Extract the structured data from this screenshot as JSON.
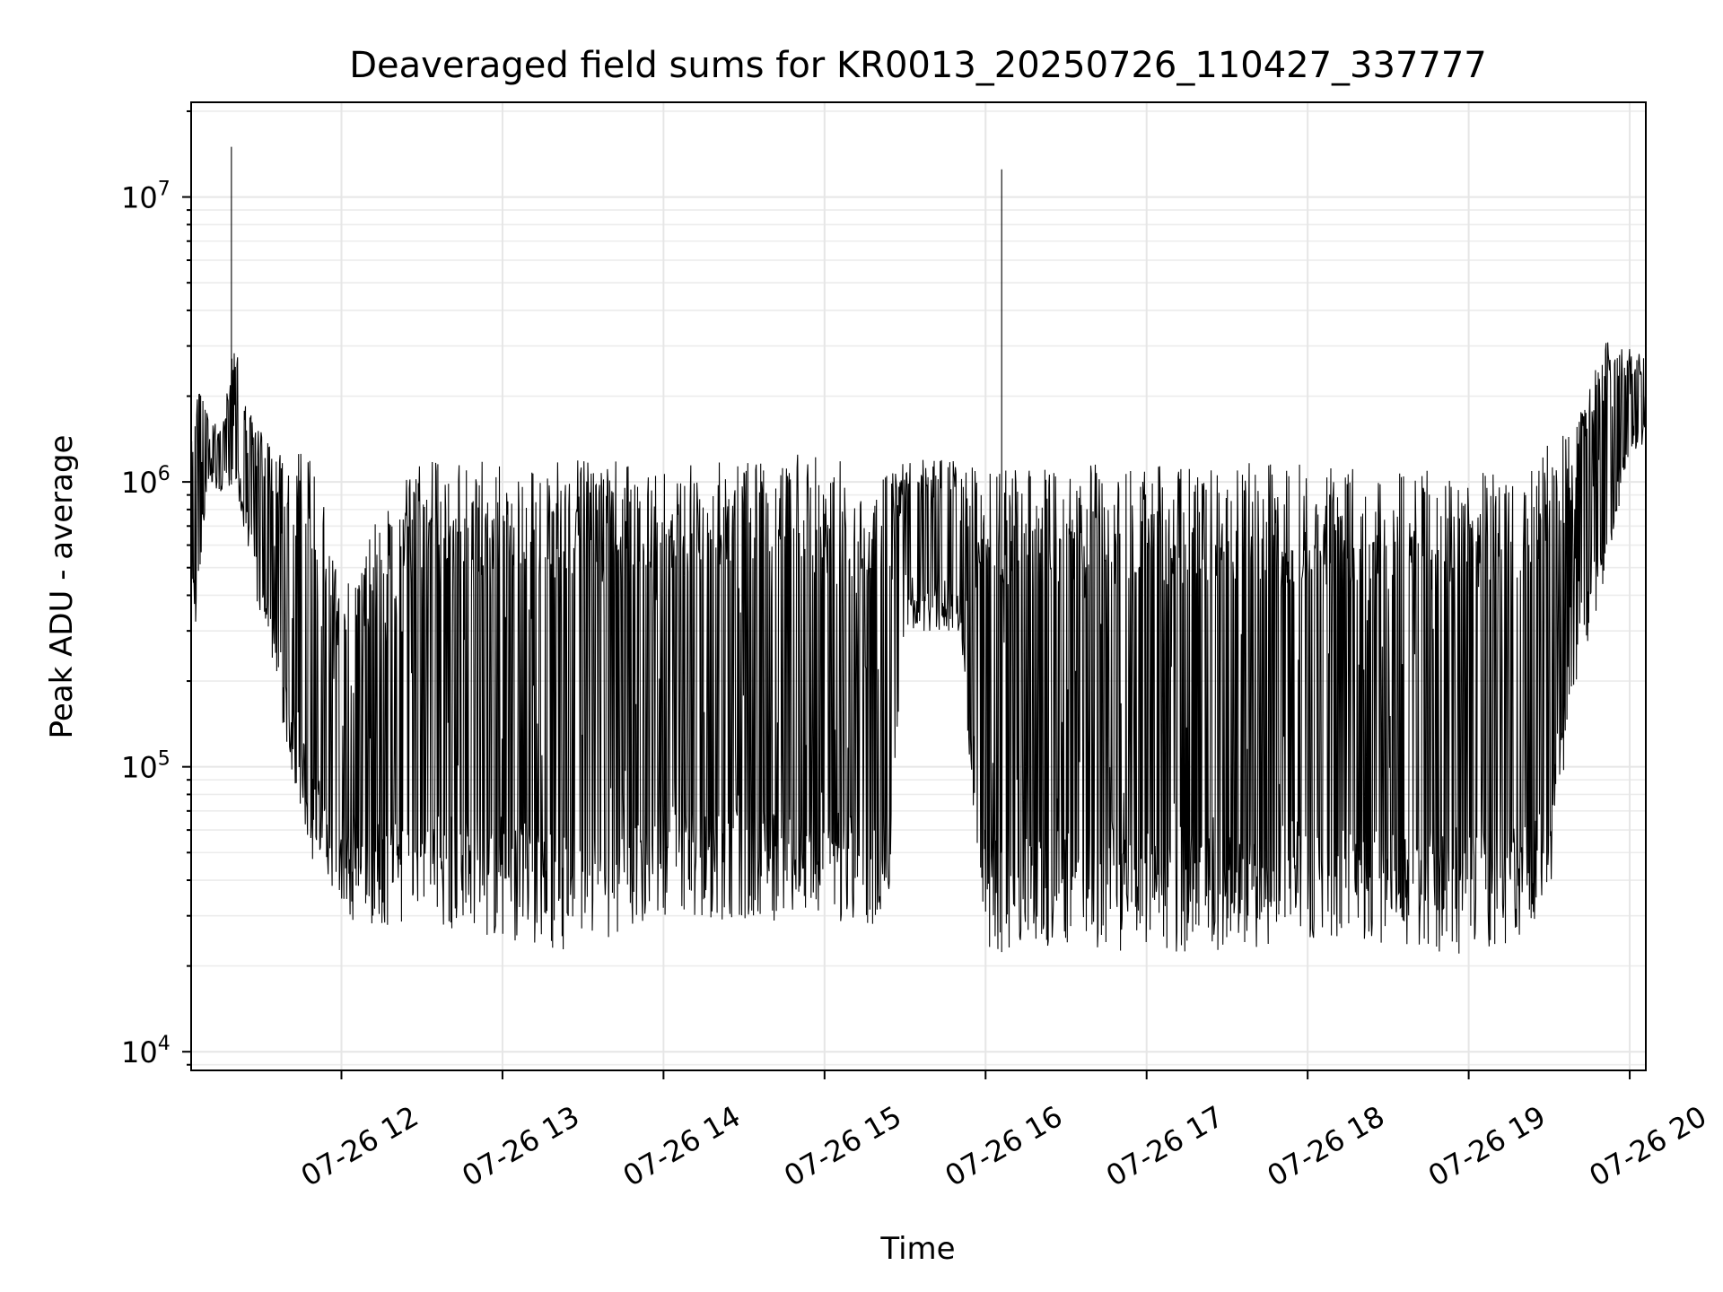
{
  "chart_data": {
    "type": "line",
    "title": "Deaveraged field sums for KR0013_20250726_110427_337777",
    "xlabel": "Time",
    "ylabel": "Peak ADU - average",
    "y_scale": "log",
    "ylim": [
      8600,
      21500000
    ],
    "xlim": [
      "2025-07-26 11:04",
      "2025-07-26 20:06"
    ],
    "grid": true,
    "x_ticks": [
      {
        "value": "2025-07-26 12:00",
        "label": "07-26 12"
      },
      {
        "value": "2025-07-26 13:00",
        "label": "07-26 13"
      },
      {
        "value": "2025-07-26 14:00",
        "label": "07-26 14"
      },
      {
        "value": "2025-07-26 15:00",
        "label": "07-26 15"
      },
      {
        "value": "2025-07-26 16:00",
        "label": "07-26 16"
      },
      {
        "value": "2025-07-26 17:00",
        "label": "07-26 17"
      },
      {
        "value": "2025-07-26 18:00",
        "label": "07-26 18"
      },
      {
        "value": "2025-07-26 19:00",
        "label": "07-26 19"
      },
      {
        "value": "2025-07-26 20:00",
        "label": "07-26 20"
      }
    ],
    "y_ticks": [
      {
        "value": 10000,
        "base": "10",
        "exp": "4"
      },
      {
        "value": 100000,
        "base": "10",
        "exp": "5"
      },
      {
        "value": 1000000,
        "base": "10",
        "exp": "6"
      },
      {
        "value": 10000000,
        "base": "10",
        "exp": "7"
      }
    ],
    "series": [
      {
        "color": "#000000",
        "x": [
          "2025-07-26 11:04",
          "2025-07-26 11:06",
          "2025-07-26 11:10",
          "2025-07-26 11:15",
          "2025-07-26 11:20",
          "2025-07-26 11:25",
          "2025-07-26 11:30",
          "2025-07-26 11:35",
          "2025-07-26 11:40",
          "2025-07-26 11:45",
          "2025-07-26 11:50",
          "2025-07-26 11:55",
          "2025-07-26 12:00",
          "2025-07-26 12:05",
          "2025-07-26 12:15",
          "2025-07-26 12:30",
          "2025-07-26 12:45",
          "2025-07-26 13:00",
          "2025-07-26 13:20",
          "2025-07-26 13:40",
          "2025-07-26 13:55",
          "2025-07-26 14:00",
          "2025-07-26 14:30",
          "2025-07-26 15:00",
          "2025-07-26 15:25",
          "2025-07-26 15:30",
          "2025-07-26 15:50",
          "2025-07-26 16:00",
          "2025-07-26 16:30",
          "2025-07-26 17:00",
          "2025-07-26 17:30",
          "2025-07-26 18:00",
          "2025-07-26 18:30",
          "2025-07-26 19:00",
          "2025-07-26 19:20",
          "2025-07-26 19:30",
          "2025-07-26 19:40",
          "2025-07-26 19:50",
          "2025-07-26 20:00",
          "2025-07-26 20:06"
        ],
        "low": [
          400000,
          300000,
          1000000,
          900000,
          1000000,
          600000,
          300000,
          220000,
          110000,
          60000,
          45000,
          35000,
          32000,
          28000,
          28000,
          27000,
          26000,
          25000,
          23000,
          22000,
          25000,
          30000,
          28000,
          27000,
          28000,
          300000,
          300000,
          22000,
          24000,
          22000,
          22000,
          25000,
          23000,
          22000,
          25000,
          35000,
          200000,
          400000,
          1300000,
          1300000
        ],
        "high": [
          1400000,
          2600000,
          1800000,
          1500000,
          3200000,
          1800000,
          1500000,
          1300000,
          1200000,
          1300000,
          1200000,
          700000,
          400000,
          500000,
          800000,
          1200000,
          1200000,
          1250000,
          1200000,
          1200000,
          1150000,
          1100000,
          1250000,
          1250000,
          1100000,
          1200000,
          1200000,
          1100000,
          1150000,
          1150000,
          1200000,
          1150000,
          1100000,
          1100000,
          1050000,
          1400000,
          1600000,
          3200000,
          3000000,
          2800000
        ],
        "annotations": [
          {
            "x": "2025-07-26 11:19",
            "y": 15000000
          },
          {
            "x": "2025-07-26 16:06",
            "y": 12500000
          }
        ]
      }
    ]
  }
}
